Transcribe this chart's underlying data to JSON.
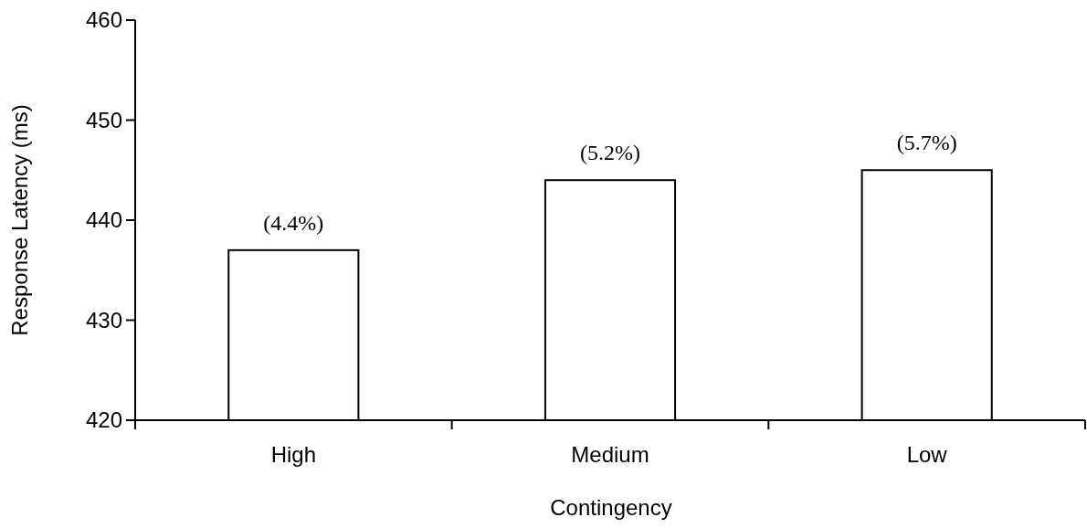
{
  "chart_data": {
    "type": "bar",
    "xlabel": "Contingency",
    "ylabel": "Response Latency (ms)",
    "categories": [
      "High",
      "Medium",
      "Low"
    ],
    "values": [
      437,
      444,
      445
    ],
    "annotations": [
      {
        "text": "(4.4%)",
        "x": "High",
        "y": 437
      },
      {
        "text": "(5.2%)",
        "x": "Medium",
        "y": 444
      },
      {
        "text": "(5.7%)",
        "x": "Low",
        "y": 445
      }
    ],
    "color": "#ffffff",
    "ylim": [
      420,
      460
    ],
    "yticks": [
      420,
      430,
      440,
      450,
      460
    ],
    "grid": false
  }
}
